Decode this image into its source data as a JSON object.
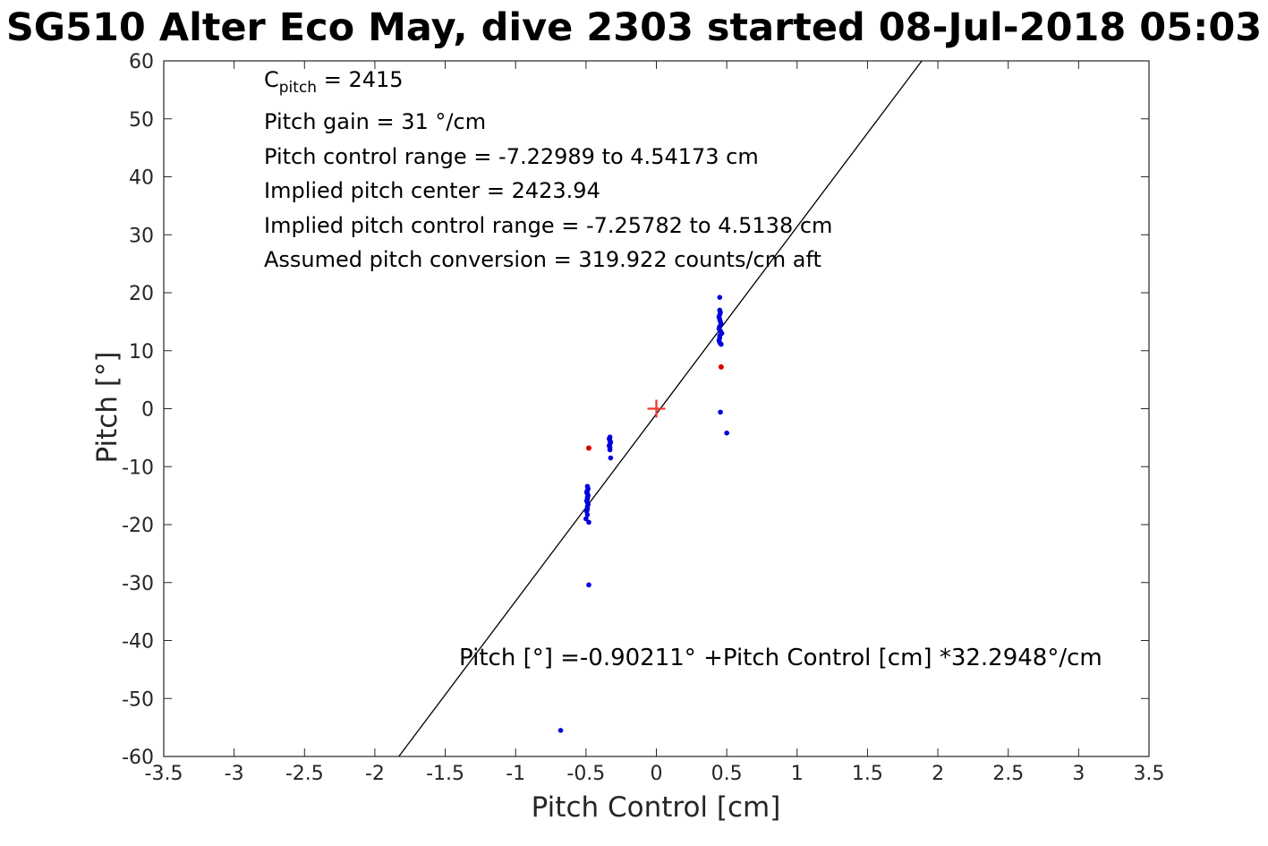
{
  "title": "SG510 Alter Eco May, dive 2303 started 08-Jul-2018 05:03",
  "annotation": {
    "c_line": {
      "base": "C",
      "sub": "pitch",
      "rest": " = 2415"
    },
    "lines": [
      "Pitch gain = 31 °/cm",
      "Pitch control range = -7.22989 to 4.54173 cm",
      "Implied pitch center = 2423.94",
      "Implied pitch control range = -7.25782 to 4.5138 cm",
      "Assumed pitch conversion = 319.922 counts/cm aft"
    ]
  },
  "equation": {
    "text": "Pitch [°] =-0.90211° +Pitch Control [cm] *32.2948°/cm"
  },
  "chart_data": {
    "type": "scatter",
    "title": "SG510 Alter Eco May, dive 2303 started 08-Jul-2018 05:03",
    "xlabel": "Pitch Control [cm]",
    "ylabel": "Pitch [°]",
    "xlim": [
      -3.5,
      3.5
    ],
    "ylim": [
      -60,
      60
    ],
    "grid": false,
    "legend": "none",
    "axis_color": "#262626",
    "x_ticks": [
      {
        "value": -3.5,
        "label": "-3.5"
      },
      {
        "value": -3,
        "label": "-3"
      },
      {
        "value": -2.5,
        "label": "-2.5"
      },
      {
        "value": -2,
        "label": "-2"
      },
      {
        "value": -1.5,
        "label": "-1.5"
      },
      {
        "value": -1,
        "label": "-1"
      },
      {
        "value": -0.5,
        "label": "-0.5"
      },
      {
        "value": 0,
        "label": "0"
      },
      {
        "value": 0.5,
        "label": "0.5"
      },
      {
        "value": 1,
        "label": "1"
      },
      {
        "value": 1.5,
        "label": "1.5"
      },
      {
        "value": 2,
        "label": "2"
      },
      {
        "value": 2.5,
        "label": "2.5"
      },
      {
        "value": 3,
        "label": "3"
      },
      {
        "value": 3.5,
        "label": "3.5"
      }
    ],
    "y_ticks": [
      {
        "value": -60,
        "label": "-60"
      },
      {
        "value": -50,
        "label": "-50"
      },
      {
        "value": -40,
        "label": "-40"
      },
      {
        "value": -30,
        "label": "-30"
      },
      {
        "value": -20,
        "label": "-20"
      },
      {
        "value": -10,
        "label": "-10"
      },
      {
        "value": 0,
        "label": "0"
      },
      {
        "value": 10,
        "label": "10"
      },
      {
        "value": 20,
        "label": "20"
      },
      {
        "value": 30,
        "label": "30"
      },
      {
        "value": 40,
        "label": "40"
      },
      {
        "value": 50,
        "label": "50"
      },
      {
        "value": 60,
        "label": "60"
      }
    ],
    "fit_line": {
      "slope": 32.2948,
      "intercept": -0.90211,
      "color": "#000000",
      "label": "Pitch [°] =-0.90211° +Pitch Control [cm] *32.2948°/cm"
    },
    "series": [
      {
        "name": "pitch-observations-blue",
        "marker": "dot",
        "color": "#0000dd",
        "r": 2.8,
        "points": [
          [
            -0.49,
            -13.4
          ],
          [
            -0.485,
            -13.8
          ],
          [
            -0.49,
            -14.1
          ],
          [
            -0.495,
            -14.4
          ],
          [
            -0.49,
            -14.7
          ],
          [
            -0.485,
            -15.0
          ],
          [
            -0.49,
            -15.3
          ],
          [
            -0.49,
            -15.6
          ],
          [
            -0.495,
            -15.9
          ],
          [
            -0.49,
            -16.2
          ],
          [
            -0.485,
            -16.5
          ],
          [
            -0.49,
            -16.9
          ],
          [
            -0.49,
            -17.3
          ],
          [
            -0.495,
            -17.7
          ],
          [
            -0.49,
            -18.3
          ],
          [
            -0.5,
            -19.0
          ],
          [
            -0.48,
            -19.6
          ],
          [
            -0.48,
            -30.4
          ],
          [
            -0.33,
            -4.9
          ],
          [
            -0.335,
            -5.2
          ],
          [
            -0.33,
            -5.5
          ],
          [
            -0.325,
            -5.8
          ],
          [
            -0.33,
            -6.1
          ],
          [
            -0.335,
            -6.4
          ],
          [
            -0.33,
            -6.7
          ],
          [
            -0.33,
            -7.1
          ],
          [
            -0.325,
            -8.5
          ],
          [
            0.45,
            19.2
          ],
          [
            0.45,
            17.0
          ],
          [
            0.455,
            16.6
          ],
          [
            0.45,
            16.2
          ],
          [
            0.445,
            15.8
          ],
          [
            0.45,
            15.4
          ],
          [
            0.455,
            15.0
          ],
          [
            0.46,
            14.6
          ],
          [
            0.45,
            14.2
          ],
          [
            0.445,
            13.8
          ],
          [
            0.455,
            13.4
          ],
          [
            0.465,
            13.0
          ],
          [
            0.45,
            12.6
          ],
          [
            0.45,
            12.2
          ],
          [
            0.445,
            11.8
          ],
          [
            0.45,
            11.4
          ],
          [
            0.46,
            11.1
          ],
          [
            0.455,
            -0.6
          ],
          [
            0.5,
            -4.2
          ],
          [
            -0.68,
            -55.5
          ]
        ]
      },
      {
        "name": "flagged-observations-red",
        "marker": "dot",
        "color": "#dd0000",
        "r": 3,
        "points": [
          [
            -0.48,
            -6.8
          ],
          [
            0.46,
            7.2
          ]
        ]
      },
      {
        "name": "pitch-center-marker",
        "marker": "plus",
        "color": "#ee3a2a",
        "size": 20,
        "points": [
          [
            0,
            0
          ]
        ]
      }
    ]
  }
}
